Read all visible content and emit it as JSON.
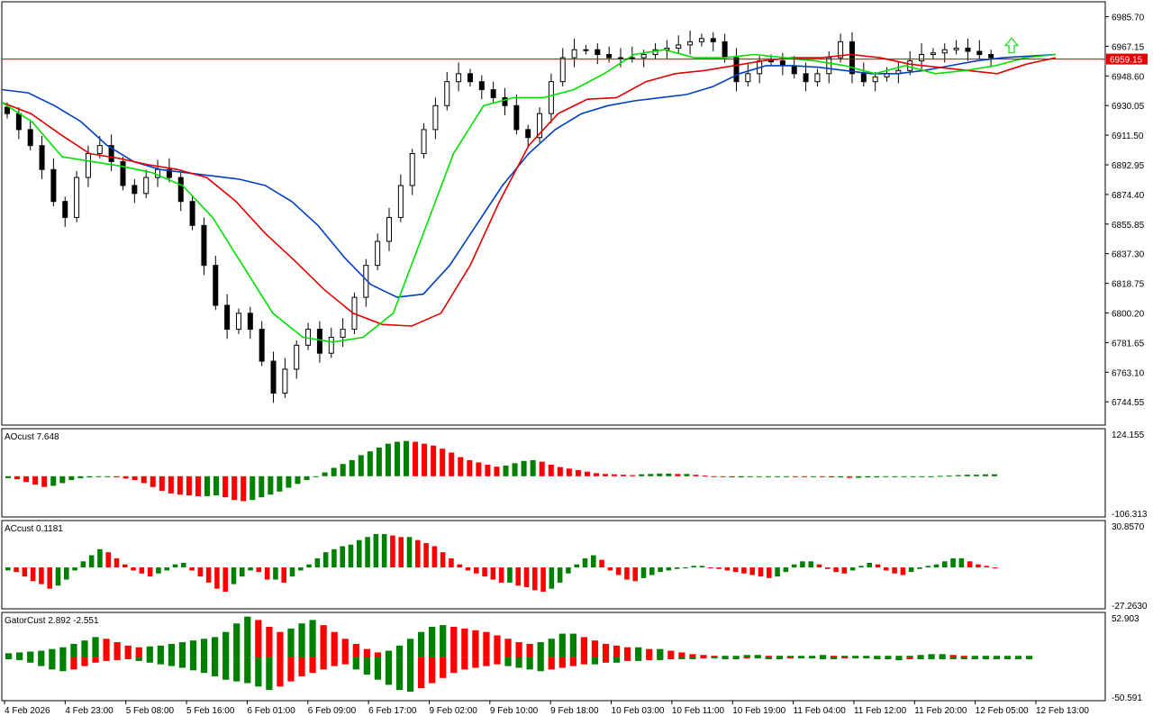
{
  "colors": {
    "background": "#ffffff",
    "frame": "#000000",
    "bull_bar": "#008000",
    "bear_bar": "#ff0000",
    "jaw": "#0040c0",
    "teeth": "#e00000",
    "lips": "#00e000",
    "price_line": "#c00000",
    "price_tag_bg": "#e00000",
    "candle_bull_fill": "#ffffff",
    "candle_bear_fill": "#000000",
    "fractal": "#a0a0a0",
    "arrow": "#40e040"
  },
  "icons": {
    "buy_arrow": "up-arrow-icon",
    "fractal": "fractal-arrow-icon"
  },
  "chart_data": [
    {
      "type": "candlestick",
      "pane": "price",
      "current_price_label": "6959.15",
      "current_price": 6959.15,
      "ylim": [
        6730,
        6995
      ],
      "y_ticks": [
        "6985.70",
        "6967.15",
        "6948.60",
        "6930.05",
        "6911.50",
        "6892.95",
        "6874.40",
        "6855.85",
        "6837.30",
        "6818.75",
        "6800.20",
        "6781.65",
        "6763.10",
        "6744.55"
      ],
      "x_ticks": [
        "4 Feb 2026",
        "4 Feb 23:00",
        "5 Feb 08:00",
        "5 Feb 16:00",
        "6 Feb 01:00",
        "6 Feb 09:00",
        "6 Feb 17:00",
        "9 Feb 02:00",
        "9 Feb 10:00",
        "9 Feb 18:00",
        "10 Feb 03:00",
        "10 Feb 11:00",
        "10 Feb 19:00",
        "11 Feb 04:00",
        "11 Feb 12:00",
        "11 Feb 20:00",
        "12 Feb 05:00",
        "12 Feb 13:00"
      ],
      "close_path": [
        6925,
        6915,
        6905,
        6890,
        6870,
        6860,
        6885,
        6900,
        6905,
        6895,
        6880,
        6875,
        6885,
        6890,
        6885,
        6870,
        6855,
        6830,
        6805,
        6790,
        6800,
        6790,
        6770,
        6750,
        6765,
        6780,
        6790,
        6775,
        6785,
        6790,
        6810,
        6830,
        6845,
        6860,
        6880,
        6900,
        6915,
        6930,
        6945,
        6950,
        6945,
        6940,
        6935,
        6930,
        6915,
        6910,
        6925,
        6945,
        6960,
        6965,
        6965,
        6962,
        6960,
        6960,
        6960,
        6962,
        6965,
        6966,
        6968,
        6970,
        6972,
        6970,
        6960,
        6945,
        6950,
        6958,
        6958,
        6955,
        6950,
        6945,
        6950,
        6960,
        6970,
        6950,
        6945,
        6948,
        6950,
        6952,
        6958,
        6962,
        6963,
        6965,
        6966,
        6964,
        6962,
        6960
      ],
      "series": [
        {
          "name": "Jaw",
          "values": [
            6940,
            6938,
            6930,
            6920,
            6905,
            6895,
            6890,
            6888,
            6886,
            6884,
            6880,
            6870,
            6855,
            6835,
            6818,
            6810,
            6812,
            6830,
            6855,
            6880,
            6900,
            6915,
            6925,
            6930,
            6933,
            6935,
            6937,
            6942,
            6950,
            6955,
            6955,
            6954,
            6952,
            6950,
            6950,
            6952,
            6955,
            6958,
            6960,
            6961,
            6962
          ]
        },
        {
          "name": "Teeth",
          "values": [
            6932,
            6925,
            6912,
            6900,
            6897,
            6893,
            6890,
            6885,
            6870,
            6850,
            6833,
            6815,
            6800,
            6793,
            6792,
            6800,
            6830,
            6870,
            6905,
            6925,
            6934,
            6935,
            6945,
            6950,
            6952,
            6955,
            6958,
            6960,
            6960,
            6962,
            6960,
            6956,
            6954,
            6952,
            6950,
            6956,
            6960
          ]
        },
        {
          "name": "Lips",
          "values": [
            6932,
            6920,
            6898,
            6895,
            6892,
            6888,
            6880,
            6860,
            6830,
            6800,
            6785,
            6782,
            6785,
            6800,
            6850,
            6900,
            6930,
            6935,
            6935,
            6940,
            6950,
            6962,
            6965,
            6960,
            6960,
            6962,
            6960,
            6958,
            6955,
            6950,
            6955,
            6950,
            6952,
            6955,
            6960,
            6962
          ]
        }
      ]
    },
    {
      "type": "bar",
      "pane": "AOcust",
      "label": "AOcust 7.648",
      "ylim": [
        -106.313,
        124.155
      ],
      "y_ticks": [
        "124.155",
        "-106.313"
      ],
      "values": [
        -5,
        -8,
        -15,
        -22,
        -28,
        -25,
        -18,
        -10,
        -5,
        -3,
        -2,
        -1,
        -3,
        -6,
        -10,
        -18,
        -28,
        -38,
        -45,
        -48,
        -50,
        -52,
        -52,
        -50,
        -55,
        -62,
        -65,
        -62,
        -55,
        -48,
        -40,
        -30,
        -20,
        -10,
        0,
        10,
        22,
        32,
        42,
        55,
        65,
        75,
        85,
        90,
        92,
        90,
        85,
        80,
        72,
        62,
        50,
        42,
        36,
        30,
        25,
        28,
        34,
        40,
        42,
        38,
        30,
        24,
        20,
        16,
        12,
        8,
        6,
        5,
        4,
        3,
        5,
        6,
        7,
        7,
        6,
        6,
        4,
        2,
        0,
        -2,
        -3,
        -3,
        -2,
        -1,
        0,
        0,
        0,
        -1,
        -2,
        -1,
        -2,
        -3,
        -3,
        -4,
        -4,
        -3,
        -3,
        -2,
        -1,
        -1,
        -1,
        -1,
        0,
        1,
        2,
        3,
        4,
        4,
        5,
        5
      ],
      "colors_by_sign": "alternating"
    },
    {
      "type": "bar",
      "pane": "ACcust",
      "label": "ACcust 0.1181",
      "ylim": [
        -27.263,
        30.857
      ],
      "y_ticks": [
        "30.8570",
        "-27.2630"
      ],
      "values": [
        -2,
        -3,
        -6,
        -9,
        -11,
        -14,
        -12,
        -8,
        -2,
        4,
        8,
        12,
        10,
        6,
        2,
        -2,
        -4,
        -6,
        -4,
        -2,
        2,
        3,
        -2,
        -6,
        -10,
        -14,
        -16,
        -11,
        -6,
        -2,
        -3,
        -8,
        -8,
        -10,
        -6,
        -2,
        2,
        6,
        10,
        12,
        14,
        15,
        18,
        20,
        22,
        22,
        21,
        20,
        20,
        18,
        16,
        14,
        10,
        6,
        2,
        -2,
        -4,
        -6,
        -8,
        -10,
        -10,
        -12,
        -13,
        -15,
        -16,
        -14,
        -10,
        -4,
        2,
        6,
        8,
        5,
        -2,
        -5,
        -8,
        -9,
        -7,
        -5,
        -3,
        -2,
        -1,
        0,
        1,
        1,
        0,
        -1,
        -2,
        -3,
        -4,
        -5,
        -6,
        -7,
        -6,
        -3,
        2,
        4,
        4,
        2,
        -1,
        -3,
        -4,
        -2,
        1,
        3,
        2,
        -2,
        -4,
        -5,
        -3,
        -1,
        1,
        2,
        4,
        6,
        6,
        4,
        2,
        1,
        0
      ]
    },
    {
      "type": "bar",
      "pane": "GatorCust",
      "label": "GatorCust 2.892 -2.551",
      "ylim": [
        -50.591,
        52.903
      ],
      "y_ticks": [
        "52.903",
        "-50.591"
      ],
      "upper": [
        5,
        6,
        7,
        8,
        10,
        12,
        16,
        20,
        24,
        22,
        18,
        14,
        12,
        13,
        14,
        16,
        18,
        20,
        22,
        24,
        30,
        40,
        48,
        44,
        36,
        30,
        34,
        40,
        44,
        38,
        30,
        22,
        16,
        10,
        6,
        8,
        14,
        22,
        30,
        36,
        38,
        36,
        34,
        32,
        30,
        26,
        22,
        18,
        16,
        18,
        22,
        28,
        28,
        24,
        20,
        16,
        14,
        12,
        12,
        10,
        10,
        8,
        6,
        4,
        3,
        2,
        2,
        2,
        3,
        3,
        2,
        2,
        2,
        2,
        2,
        3,
        2,
        2,
        2,
        2,
        2,
        2,
        2,
        2,
        3,
        4,
        4,
        3,
        2,
        2,
        2,
        2,
        2,
        2,
        2
      ],
      "lower": [
        -2,
        -3,
        -6,
        -10,
        -14,
        -16,
        -14,
        -10,
        -6,
        -4,
        -3,
        -2,
        -4,
        -6,
        -8,
        -10,
        -12,
        -15,
        -18,
        -22,
        -26,
        -28,
        -30,
        -34,
        -38,
        -34,
        -28,
        -22,
        -18,
        -14,
        -10,
        -8,
        -14,
        -20,
        -26,
        -32,
        -38,
        -40,
        -36,
        -30,
        -24,
        -18,
        -14,
        -12,
        -10,
        -8,
        -10,
        -12,
        -14,
        -16,
        -14,
        -12,
        -10,
        -8,
        -8,
        -6,
        -6,
        -4,
        -4,
        -3,
        -3,
        -2,
        -2,
        -2,
        -1,
        -1,
        -2,
        -2,
        -1,
        -1,
        -2,
        -2,
        -1,
        -1,
        -1,
        -2,
        -2,
        -1,
        -1,
        -1,
        -2,
        -2,
        -3,
        -2,
        -2,
        -2,
        -2,
        -2,
        -2,
        -2,
        -2,
        -2,
        -2,
        -2,
        -2
      ]
    }
  ]
}
